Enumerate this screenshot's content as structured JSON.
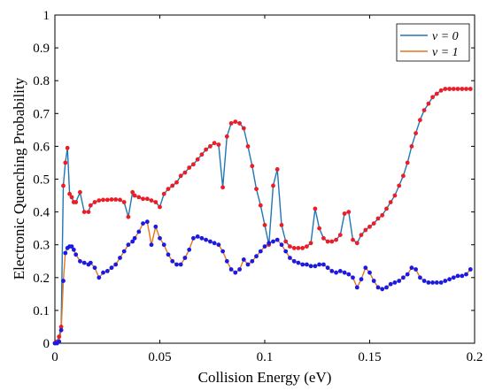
{
  "chart_data": {
    "type": "line",
    "xlabel": "Collision Energy (eV)",
    "ylabel": "Electronic Quenching Probability",
    "xlim": [
      0,
      0.2
    ],
    "ylim": [
      0,
      1
    ],
    "x_ticks": [
      "0",
      "0.05",
      "0.1",
      "0.15",
      "0.2"
    ],
    "y_ticks": [
      "0",
      "0.1",
      "0.2",
      "0.3",
      "0.4",
      "0.5",
      "0.6",
      "0.7",
      "0.8",
      "0.9",
      "1"
    ],
    "legend": {
      "position": "top-right"
    },
    "colors": {
      "v0_line": "#1f77b4",
      "v1_line": "#e8741c",
      "upper_markers": "#ee1c25",
      "lower_markers": "#1a1ae6"
    },
    "series": [
      {
        "name": "ν = 0",
        "legend_label": "ν = 0",
        "x": [
          0.0,
          0.001,
          0.002,
          0.003,
          0.004,
          0.005,
          0.006,
          0.007,
          0.008,
          0.009,
          0.01,
          0.012,
          0.014,
          0.016,
          0.017,
          0.019,
          0.021,
          0.023,
          0.025,
          0.027,
          0.029,
          0.031,
          0.033,
          0.035,
          0.037,
          0.038,
          0.04,
          0.042,
          0.044,
          0.046,
          0.048,
          0.05,
          0.052,
          0.054,
          0.056,
          0.058,
          0.06,
          0.062,
          0.064,
          0.066,
          0.068,
          0.07,
          0.072,
          0.074,
          0.076,
          0.078,
          0.08,
          0.082,
          0.084,
          0.086,
          0.088,
          0.09,
          0.092,
          0.094,
          0.096,
          0.098,
          0.1,
          0.102,
          0.104,
          0.106,
          0.108,
          0.11,
          0.112,
          0.114,
          0.116,
          0.118,
          0.12,
          0.122,
          0.124,
          0.126,
          0.128,
          0.13,
          0.132,
          0.134,
          0.136,
          0.138,
          0.14,
          0.142,
          0.144,
          0.146,
          0.148,
          0.15,
          0.152,
          0.154,
          0.156,
          0.158,
          0.16,
          0.162,
          0.164,
          0.166,
          0.168,
          0.17,
          0.172,
          0.174,
          0.176,
          0.178,
          0.18,
          0.182,
          0.184,
          0.186,
          0.188,
          0.19,
          0.192,
          0.194,
          0.196,
          0.198
        ],
        "y": [
          0.0,
          0.005,
          0.02,
          0.05,
          0.48,
          0.55,
          0.595,
          0.455,
          0.445,
          0.43,
          0.43,
          0.46,
          0.4,
          0.4,
          0.42,
          0.43,
          0.435,
          0.437,
          0.437,
          0.438,
          0.438,
          0.437,
          0.43,
          0.385,
          0.46,
          0.45,
          0.445,
          0.44,
          0.44,
          0.435,
          0.43,
          0.415,
          0.455,
          0.47,
          0.48,
          0.49,
          0.51,
          0.52,
          0.535,
          0.545,
          0.56,
          0.575,
          0.59,
          0.6,
          0.61,
          0.605,
          0.475,
          0.63,
          0.67,
          0.675,
          0.67,
          0.655,
          0.6,
          0.54,
          0.47,
          0.42,
          0.36,
          0.3,
          0.48,
          0.53,
          0.36,
          0.31,
          0.295,
          0.29,
          0.29,
          0.29,
          0.295,
          0.305,
          0.41,
          0.35,
          0.32,
          0.31,
          0.31,
          0.315,
          0.33,
          0.395,
          0.4,
          0.315,
          0.305,
          0.33,
          0.345,
          0.355,
          0.365,
          0.38,
          0.39,
          0.41,
          0.43,
          0.45,
          0.48,
          0.51,
          0.55,
          0.6,
          0.64,
          0.68,
          0.71,
          0.73,
          0.75,
          0.76,
          0.77,
          0.775,
          0.775,
          0.775,
          0.775,
          0.775,
          0.775,
          0.775
        ]
      },
      {
        "name": "ν = 1",
        "legend_label": "ν = 1",
        "x": [
          0.0,
          0.001,
          0.002,
          0.003,
          0.004,
          0.005,
          0.006,
          0.007,
          0.008,
          0.009,
          0.01,
          0.012,
          0.014,
          0.016,
          0.017,
          0.019,
          0.021,
          0.023,
          0.025,
          0.027,
          0.029,
          0.031,
          0.033,
          0.035,
          0.037,
          0.038,
          0.04,
          0.042,
          0.044,
          0.046,
          0.048,
          0.05,
          0.052,
          0.054,
          0.056,
          0.058,
          0.06,
          0.062,
          0.064,
          0.066,
          0.068,
          0.07,
          0.072,
          0.074,
          0.076,
          0.078,
          0.08,
          0.082,
          0.084,
          0.086,
          0.088,
          0.09,
          0.092,
          0.094,
          0.096,
          0.098,
          0.1,
          0.102,
          0.104,
          0.106,
          0.108,
          0.11,
          0.112,
          0.114,
          0.116,
          0.118,
          0.12,
          0.122,
          0.124,
          0.126,
          0.128,
          0.13,
          0.132,
          0.134,
          0.136,
          0.138,
          0.14,
          0.142,
          0.144,
          0.146,
          0.148,
          0.15,
          0.152,
          0.154,
          0.156,
          0.158,
          0.16,
          0.162,
          0.164,
          0.166,
          0.168,
          0.17,
          0.172,
          0.174,
          0.176,
          0.178,
          0.18,
          0.182,
          0.184,
          0.186,
          0.188,
          0.19,
          0.192,
          0.194,
          0.196,
          0.198
        ],
        "y": [
          0.0,
          0.0,
          0.005,
          0.04,
          0.19,
          0.275,
          0.29,
          0.295,
          0.295,
          0.285,
          0.27,
          0.25,
          0.245,
          0.24,
          0.245,
          0.23,
          0.2,
          0.215,
          0.22,
          0.23,
          0.24,
          0.26,
          0.28,
          0.3,
          0.31,
          0.32,
          0.34,
          0.365,
          0.37,
          0.3,
          0.355,
          0.32,
          0.3,
          0.27,
          0.25,
          0.24,
          0.24,
          0.26,
          0.285,
          0.32,
          0.325,
          0.32,
          0.315,
          0.31,
          0.305,
          0.3,
          0.28,
          0.25,
          0.225,
          0.215,
          0.225,
          0.255,
          0.24,
          0.25,
          0.265,
          0.28,
          0.295,
          0.305,
          0.31,
          0.315,
          0.3,
          0.28,
          0.26,
          0.25,
          0.245,
          0.24,
          0.24,
          0.235,
          0.235,
          0.24,
          0.24,
          0.23,
          0.22,
          0.215,
          0.22,
          0.215,
          0.21,
          0.2,
          0.17,
          0.195,
          0.23,
          0.215,
          0.19,
          0.17,
          0.165,
          0.17,
          0.18,
          0.185,
          0.19,
          0.2,
          0.21,
          0.23,
          0.225,
          0.2,
          0.19,
          0.185,
          0.185,
          0.185,
          0.185,
          0.19,
          0.195,
          0.2,
          0.205,
          0.205,
          0.21,
          0.225
        ]
      }
    ]
  }
}
